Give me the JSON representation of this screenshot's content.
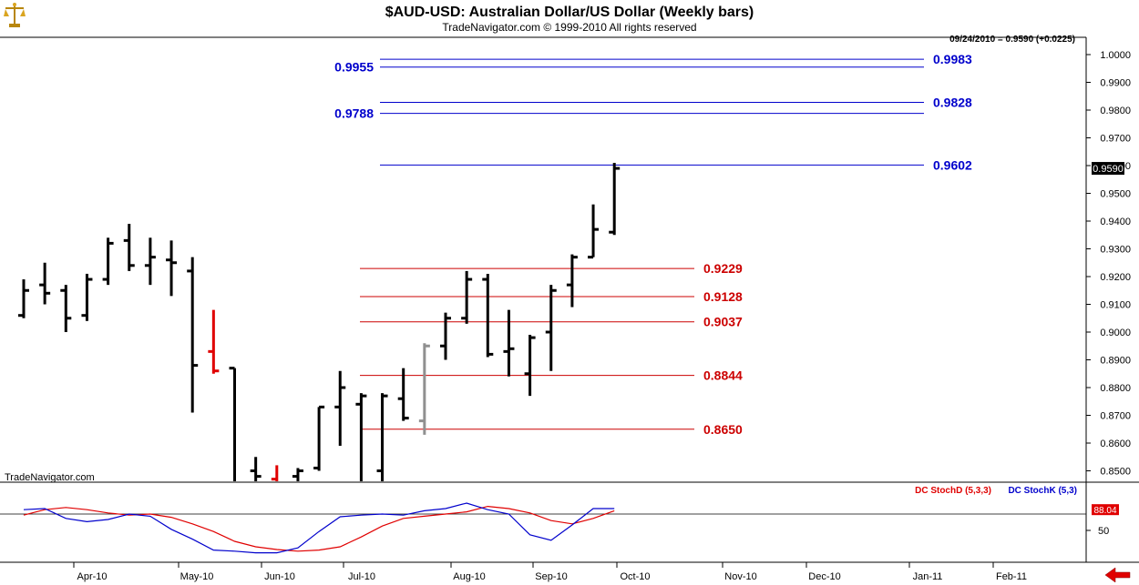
{
  "header": {
    "title": "$AUD-USD:  Australian Dollar/US Dollar  (Weekly bars)",
    "subtitle": "TradeNavigator.com © 1999-2010 All rights reserved",
    "info": "09/24/2010 = 0.9590 (+0.0225)"
  },
  "branding": {
    "watermark": "TradeNavigator.com",
    "logo_icon": "scales-icon",
    "nav_arrow_icon": "arrow-left-icon"
  },
  "colors": {
    "price_bar": "#000000",
    "highlight_red_bar": "#e00000",
    "highlight_gray_bar": "#909090",
    "resistance": "#0000cc",
    "support": "#cc0000",
    "stoch_d": "#e00000",
    "stoch_k": "#0000cc"
  },
  "chart_data": [
    {
      "type": "ohlc",
      "series_name": "$AUD-USD",
      "y_axis": {
        "range": [
          0.845,
          1.003
        ],
        "ticks": [
          "1.0000",
          "0.9900",
          "0.9800",
          "0.9700",
          "0.9600",
          "0.9500",
          "0.9400",
          "0.9300",
          "0.9200",
          "0.9100",
          "0.9000",
          "0.8900",
          "0.8800",
          "0.8700",
          "0.8600",
          "0.8500"
        ]
      },
      "last_price": "0.9590",
      "x_axis_labels": [
        "Apr-10",
        "May-10",
        "Jun-10",
        "Jul-10",
        "Aug-10",
        "Sep-10",
        "Oct-10",
        "Nov-10",
        "Dec-10",
        "Jan-11",
        "Feb-11"
      ],
      "bars": [
        {
          "o": 0.906,
          "h": 0.919,
          "l": 0.905,
          "c": 0.915
        },
        {
          "o": 0.917,
          "h": 0.925,
          "l": 0.91,
          "c": 0.914
        },
        {
          "o": 0.915,
          "h": 0.917,
          "l": 0.9,
          "c": 0.905
        },
        {
          "o": 0.906,
          "h": 0.921,
          "l": 0.904,
          "c": 0.919
        },
        {
          "o": 0.919,
          "h": 0.934,
          "l": 0.917,
          "c": 0.932
        },
        {
          "o": 0.933,
          "h": 0.939,
          "l": 0.922,
          "c": 0.924
        },
        {
          "o": 0.924,
          "h": 0.934,
          "l": 0.917,
          "c": 0.927
        },
        {
          "o": 0.926,
          "h": 0.933,
          "l": 0.913,
          "c": 0.925
        },
        {
          "o": 0.922,
          "h": 0.927,
          "l": 0.871,
          "c": 0.888
        },
        {
          "o": 0.893,
          "h": 0.908,
          "l": 0.885,
          "c": 0.886,
          "color": "red"
        },
        {
          "o": 0.887,
          "h": 0.887,
          "l": 0.845,
          "c": 0.845
        },
        {
          "o": 0.85,
          "h": 0.855,
          "l": 0.845,
          "c": 0.848
        },
        {
          "o": 0.847,
          "h": 0.852,
          "l": 0.845,
          "c": 0.846,
          "color": "red"
        },
        {
          "o": 0.848,
          "h": 0.851,
          "l": 0.845,
          "c": 0.85
        },
        {
          "o": 0.851,
          "h": 0.873,
          "l": 0.85,
          "c": 0.873
        },
        {
          "o": 0.873,
          "h": 0.886,
          "l": 0.859,
          "c": 0.88
        },
        {
          "o": 0.874,
          "h": 0.878,
          "l": 0.845,
          "c": 0.877
        },
        {
          "o": 0.85,
          "h": 0.878,
          "l": 0.845,
          "c": 0.877
        },
        {
          "o": 0.876,
          "h": 0.887,
          "l": 0.868,
          "c": 0.869
        },
        {
          "o": 0.868,
          "h": 0.896,
          "l": 0.863,
          "c": 0.895,
          "color": "gray"
        },
        {
          "o": 0.895,
          "h": 0.907,
          "l": 0.89,
          "c": 0.905
        },
        {
          "o": 0.905,
          "h": 0.922,
          "l": 0.903,
          "c": 0.919
        },
        {
          "o": 0.919,
          "h": 0.921,
          "l": 0.891,
          "c": 0.892
        },
        {
          "o": 0.893,
          "h": 0.908,
          "l": 0.884,
          "c": 0.894
        },
        {
          "o": 0.885,
          "h": 0.899,
          "l": 0.877,
          "c": 0.898
        },
        {
          "o": 0.9,
          "h": 0.917,
          "l": 0.886,
          "c": 0.915
        },
        {
          "o": 0.917,
          "h": 0.928,
          "l": 0.909,
          "c": 0.927
        },
        {
          "o": 0.927,
          "h": 0.946,
          "l": 0.927,
          "c": 0.937
        },
        {
          "o": 0.936,
          "h": 0.961,
          "l": 0.935,
          "c": 0.959
        }
      ],
      "levels": [
        {
          "value": 0.9983,
          "label": "0.9983",
          "side": "right",
          "kind": "resistance"
        },
        {
          "value": 0.9955,
          "label": "0.9955",
          "side": "left",
          "kind": "resistance"
        },
        {
          "value": 0.9828,
          "label": "0.9828",
          "side": "right",
          "kind": "resistance"
        },
        {
          "value": 0.9788,
          "label": "0.9788",
          "side": "left",
          "kind": "resistance"
        },
        {
          "value": 0.9602,
          "label": "0.9602",
          "side": "right",
          "kind": "resistance"
        },
        {
          "value": 0.9229,
          "label": "0.9229",
          "side": "right",
          "kind": "support"
        },
        {
          "value": 0.9128,
          "label": "0.9128",
          "side": "right",
          "kind": "support"
        },
        {
          "value": 0.9037,
          "label": "0.9037",
          "side": "right",
          "kind": "support"
        },
        {
          "value": 0.8844,
          "label": "0.8844",
          "side": "right",
          "kind": "support"
        },
        {
          "value": 0.865,
          "label": "0.8650",
          "side": "right",
          "kind": "support"
        }
      ]
    },
    {
      "type": "line",
      "indicator": "stochastic",
      "y_axis": {
        "range": [
          0,
          100
        ],
        "ticks": [
          "50"
        ],
        "reference_line": 80
      },
      "last_value": "88.04",
      "legend": [
        {
          "name": "DC StochD (5,3,3)",
          "color": "#e00000"
        },
        {
          "name": "DC StochK (5,3)",
          "color": "#0000cc"
        }
      ],
      "series": [
        {
          "name": "DC StochD (5,3,3)",
          "values": [
            78,
            88,
            92,
            88,
            82,
            78,
            80,
            74,
            62,
            48,
            30,
            20,
            15,
            12,
            14,
            20,
            38,
            58,
            72,
            76,
            80,
            84,
            94,
            90,
            82,
            68,
            62,
            72,
            86
          ]
        },
        {
          "name": "DC StochK (5,3)",
          "values": [
            88,
            90,
            72,
            66,
            70,
            80,
            76,
            52,
            34,
            14,
            12,
            9,
            9,
            18,
            48,
            75,
            78,
            80,
            78,
            86,
            90,
            100,
            88,
            80,
            42,
            32,
            60,
            90,
            90
          ]
        }
      ]
    }
  ]
}
